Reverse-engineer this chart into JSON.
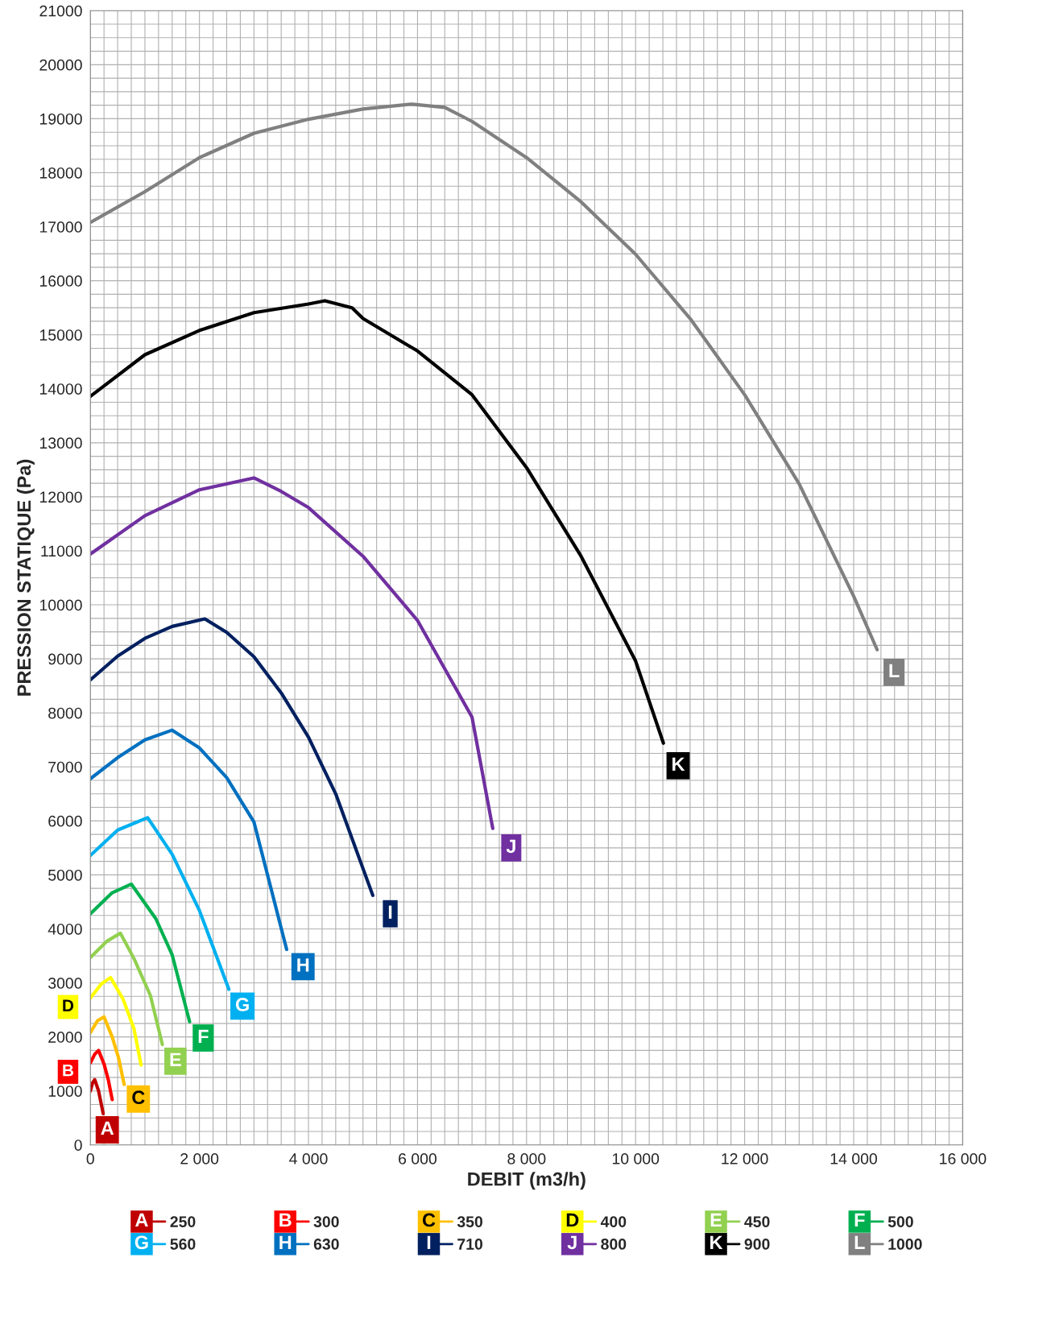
{
  "chart_data": {
    "type": "line",
    "xlabel": "DEBIT (m3/h)",
    "ylabel": "PRESSION STATIQUE (Pa)",
    "xlim": [
      0,
      16000
    ],
    "ylim": [
      0,
      21000
    ],
    "xticks": [
      0,
      {
        "value": 2000,
        "label": "2 000"
      },
      {
        "value": 4000,
        "label": "4 000"
      },
      {
        "value": 6000,
        "label": "6 000"
      },
      {
        "value": 8000,
        "label": "8 000"
      },
      {
        "value": 10000,
        "label": "10 000"
      },
      {
        "value": 12000,
        "label": "12 000"
      },
      {
        "value": 14000,
        "label": "14 000"
      },
      {
        "value": 16000,
        "label": "16 000"
      }
    ],
    "yticks": [
      0,
      1000,
      2000,
      3000,
      4000,
      5000,
      6000,
      7000,
      8000,
      9000,
      10000,
      11000,
      12000,
      13000,
      14000,
      15000,
      16000,
      17000,
      18000,
      19000,
      20000,
      21000
    ],
    "grid": true,
    "legend": "bottom",
    "marker": "none",
    "line_style": "solid",
    "series": [
      {
        "name": "250",
        "color": "#c00000",
        "x": [
          0,
          40,
          80,
          150,
          235
        ],
        "values": [
          1000,
          1150,
          1210,
          1000,
          580
        ]
      },
      {
        "name": "300",
        "color": "#ff0000",
        "x": [
          0,
          80,
          150,
          250,
          330,
          400
        ],
        "values": [
          1520,
          1680,
          1750,
          1500,
          1200,
          840
        ]
      },
      {
        "name": "350",
        "color": "#ffc000",
        "x": [
          0,
          130,
          250,
          400,
          520,
          620
        ],
        "values": [
          2080,
          2300,
          2370,
          2000,
          1600,
          1120
        ]
      },
      {
        "name": "400",
        "color": "#ffff00",
        "x": [
          0,
          200,
          370,
          600,
          800,
          930
        ],
        "values": [
          2720,
          2980,
          3100,
          2700,
          2150,
          1480
        ]
      },
      {
        "name": "450",
        "color": "#92d050",
        "x": [
          0,
          300,
          550,
          800,
          1100,
          1320
        ],
        "values": [
          3470,
          3770,
          3920,
          3450,
          2770,
          1860
        ]
      },
      {
        "name": "500",
        "color": "#00b050",
        "x": [
          0,
          400,
          750,
          1200,
          1500,
          1820
        ],
        "values": [
          4280,
          4670,
          4830,
          4190,
          3520,
          2280
        ]
      },
      {
        "name": "560",
        "color": "#00b0f0",
        "x": [
          0,
          500,
          1050,
          1500,
          2000,
          2540
        ],
        "values": [
          5360,
          5830,
          6060,
          5380,
          4340,
          2880
        ]
      },
      {
        "name": "630",
        "color": "#0070c0",
        "x": [
          0,
          500,
          1000,
          1500,
          2000,
          2500,
          3000,
          3600
        ],
        "values": [
          6780,
          7170,
          7500,
          7680,
          7350,
          6800,
          5980,
          3620
        ]
      },
      {
        "name": "710",
        "color": "#002060",
        "x": [
          0,
          500,
          1000,
          1500,
          2100,
          2500,
          3000,
          3500,
          4000,
          4500,
          5180
        ],
        "values": [
          8610,
          9050,
          9380,
          9600,
          9740,
          9490,
          9040,
          8370,
          7550,
          6500,
          4620
        ]
      },
      {
        "name": "800",
        "color": "#7030a0",
        "x": [
          0,
          1000,
          2000,
          3000,
          3500,
          4000,
          5000,
          6000,
          7000,
          7380
        ],
        "values": [
          10940,
          11650,
          12130,
          12350,
          12100,
          11800,
          10900,
          9710,
          7920,
          5860
        ]
      },
      {
        "name": "900",
        "color": "#000000",
        "x": [
          0,
          1000,
          2000,
          3000,
          4000,
          4300,
          4800,
          5000,
          6000,
          7000,
          8000,
          9000,
          10000,
          10510
        ],
        "values": [
          13860,
          14630,
          15080,
          15410,
          15570,
          15630,
          15500,
          15300,
          14700,
          13890,
          12540,
          10900,
          8960,
          7440
        ]
      },
      {
        "name": "1000",
        "color": "#808080",
        "x": [
          0,
          1000,
          2000,
          3000,
          4000,
          5000,
          5900,
          6500,
          7000,
          8000,
          9000,
          10000,
          11000,
          12000,
          13000,
          14000,
          14430
        ],
        "values": [
          17080,
          17650,
          18280,
          18730,
          18990,
          19180,
          19270,
          19210,
          18950,
          18280,
          17460,
          16490,
          15300,
          13890,
          12240,
          10160,
          9170
        ]
      }
    ],
    "annotations": [
      {
        "text": "A",
        "x": 310,
        "y": 280
      },
      "B",
      {
        "text": "C",
        "x": 880,
        "y": 850
      },
      "D",
      {
        "text": "E",
        "x": 1560,
        "y": 1550
      },
      {
        "text": "F",
        "x": 2070,
        "y": 1980
      },
      {
        "text": "G",
        "x": 2790,
        "y": 2570
      },
      {
        "text": "H",
        "x": 3900,
        "y": 3300
      },
      {
        "text": "I",
        "x": 5500,
        "y": 4280
      },
      {
        "text": "J",
        "x": 7720,
        "y": 5500
      },
      {
        "text": "K",
        "x": 10780,
        "y": 7020
      },
      {
        "text": "L",
        "x": 14740,
        "y": 8750
      }
    ]
  }
}
